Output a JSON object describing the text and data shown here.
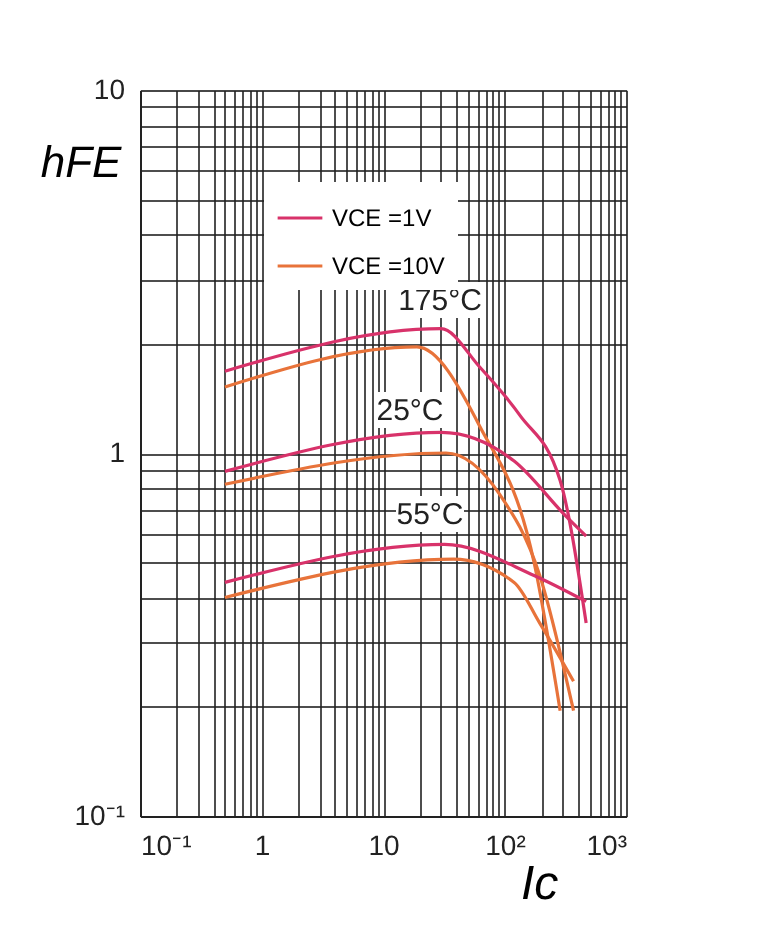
{
  "chart_data": {
    "type": "line",
    "xlabel": "Ic",
    "ylabel": "hFE",
    "log": "xy",
    "grid": true,
    "legend": "top",
    "marker": "none",
    "line_style": "solid",
    "xlim": [
      0.1,
      1000
    ],
    "ylim": [
      0.1,
      10
    ],
    "xticks": [
      {
        "value": 0.1,
        "label": "10⁻¹"
      },
      {
        "value": 0.2,
        "label": null
      },
      {
        "value": 0.3,
        "label": null
      },
      {
        "value": 0.4,
        "label": null
      },
      {
        "value": 0.5,
        "label": null
      },
      {
        "value": 0.6,
        "label": null
      },
      {
        "value": 0.7,
        "label": null
      },
      {
        "value": 0.8,
        "label": null
      },
      {
        "value": 0.9,
        "label": null
      },
      1,
      {
        "value": 2,
        "label": null
      },
      {
        "value": 3,
        "label": null
      },
      {
        "value": 4,
        "label": null
      },
      {
        "value": 5,
        "label": null
      },
      {
        "value": 6,
        "label": null
      },
      {
        "value": 7,
        "label": null
      },
      {
        "value": 8,
        "label": null
      },
      {
        "value": 9,
        "label": null
      },
      10,
      {
        "value": 20,
        "label": null
      },
      {
        "value": 30,
        "label": null
      },
      {
        "value": 40,
        "label": null
      },
      {
        "value": 50,
        "label": null
      },
      {
        "value": 60,
        "label": null
      },
      {
        "value": 70,
        "label": null
      },
      {
        "value": 80,
        "label": null
      },
      {
        "value": 90,
        "label": null
      },
      {
        "value": 100,
        "label": "10²"
      },
      {
        "value": 200,
        "label": null
      },
      {
        "value": 300,
        "label": null
      },
      {
        "value": 400,
        "label": null
      },
      {
        "value": 500,
        "label": null
      },
      {
        "value": 600,
        "label": null
      },
      {
        "value": 700,
        "label": null
      },
      {
        "value": 800,
        "label": null
      },
      {
        "value": 900,
        "label": null
      },
      {
        "value": 1000,
        "label": "10³"
      }
    ],
    "yticks": [
      {
        "value": 0.1,
        "label": "10⁻¹"
      },
      {
        "value": 0.2,
        "label": null
      },
      {
        "value": 0.3,
        "label": null
      },
      {
        "value": 0.4,
        "label": null
      },
      {
        "value": 0.5,
        "label": null
      },
      {
        "value": 0.6,
        "label": null
      },
      {
        "value": 0.7,
        "label": null
      },
      {
        "value": 0.8,
        "label": null
      },
      {
        "value": 0.9,
        "label": null
      },
      1,
      {
        "value": 2,
        "label": null
      },
      {
        "value": 3,
        "label": null
      },
      {
        "value": 4,
        "label": null
      },
      {
        "value": 5,
        "label": null
      },
      {
        "value": 6,
        "label": null
      },
      {
        "value": 7,
        "label": null
      },
      {
        "value": 8,
        "label": null
      },
      {
        "value": 9,
        "label": null
      },
      10
    ],
    "series": [
      {
        "name": "VCE =1V",
        "color": "#d8326a",
        "x": [
          0.5,
          30,
          63,
          134,
          287,
          470
        ],
        "values": [
          1.68,
          2.2,
          1.72,
          1.27,
          0.84,
          0.34
        ]
      },
      {
        "name": "VCE =10V",
        "color": "#e8733a",
        "x": [
          0.5,
          19,
          63,
          175,
          287
        ],
        "values": [
          1.52,
          1.96,
          1.18,
          0.5,
          0.195
        ]
      },
      {
        "color": "#d8326a",
        "x": [
          0.5,
          30,
          120,
          320,
          470
        ],
        "values": [
          0.89,
          1.14,
          0.95,
          0.67,
          0.59
        ]
      },
      {
        "color": "#e8733a",
        "x": [
          0.5,
          33,
          91,
          195,
          370
        ],
        "values": [
          0.82,
          1.0,
          0.77,
          0.46,
          0.195
        ]
      },
      {
        "color": "#d8326a",
        "x": [
          0.5,
          32,
          175,
          470
        ],
        "values": [
          0.44,
          0.56,
          0.46,
          0.39
        ]
      },
      {
        "color": "#e8733a",
        "x": [
          0.5,
          38,
          120,
          195,
          370
        ],
        "values": [
          0.4,
          0.51,
          0.44,
          0.34,
          0.235
        ]
      }
    ],
    "annotations": [
      "175°C",
      "25°C",
      "55°C"
    ]
  }
}
